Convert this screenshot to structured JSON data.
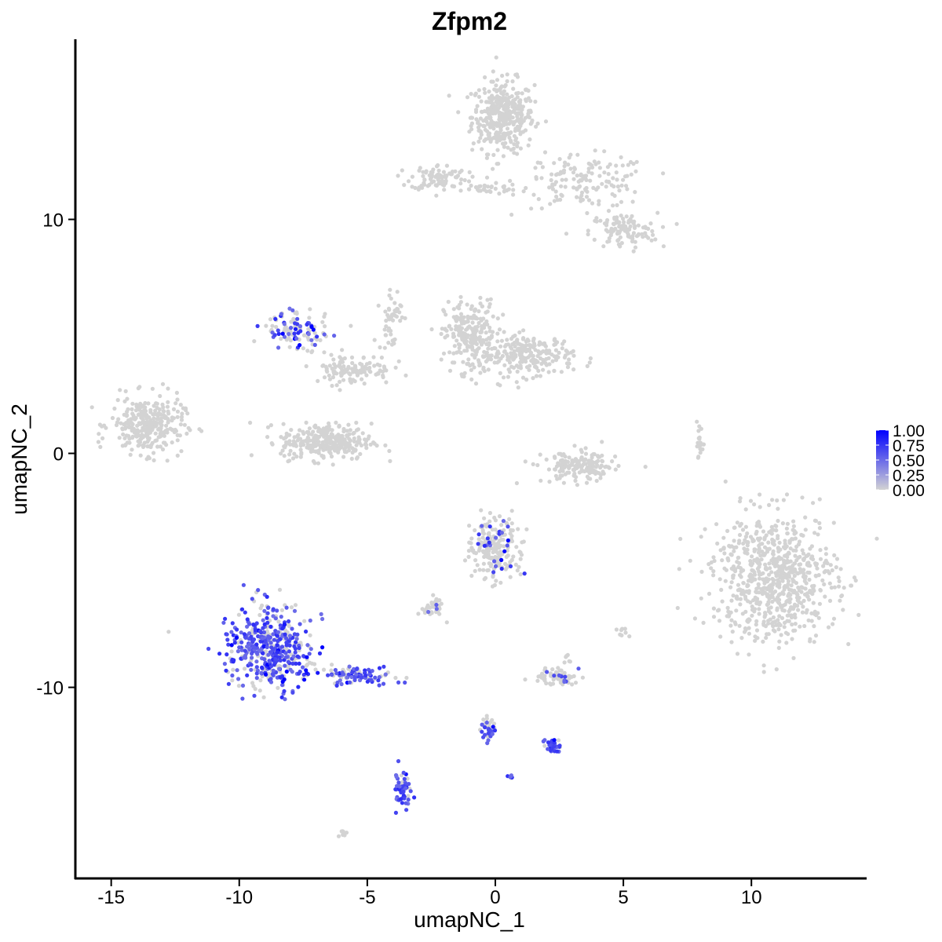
{
  "chart_data": {
    "type": "scatter",
    "title": "Zfpm2",
    "xlabel": "umapNC_1",
    "ylabel": "umapNC_2",
    "xlim": [
      -16.4,
      14.5
    ],
    "ylim": [
      -18.2,
      17.7
    ],
    "xticks": [
      -15,
      -10,
      -5,
      0,
      5,
      10
    ],
    "yticks": [
      -10,
      0,
      10
    ],
    "xtick_labels": [
      "-15",
      "-10",
      "-5",
      "0",
      "5",
      "10"
    ],
    "ytick_labels": [
      "-10",
      "0",
      "10"
    ],
    "grid": false,
    "color_scale": {
      "low": "#d3d3d3",
      "high": "#0000ff",
      "min": 0,
      "max": 1,
      "ticks": [
        1.0,
        0.75,
        0.5,
        0.25,
        0.0
      ],
      "tick_labels": [
        "1.00",
        "0.75",
        "0.50",
        "0.25",
        "0.00"
      ],
      "legend_position": "right"
    },
    "clusters": [
      {
        "cx": 0.3,
        "cy": 14.4,
        "rx": 1.1,
        "ry": 1.4,
        "n": 380,
        "expr": 0
      },
      {
        "cx": 3.5,
        "cy": 11.6,
        "rx": 2.3,
        "ry": 1.0,
        "n": 150,
        "expr": 0
      },
      {
        "cx": 5.0,
        "cy": 9.5,
        "rx": 1.2,
        "ry": 0.7,
        "n": 110,
        "expr": 0
      },
      {
        "cx": -2.2,
        "cy": 11.8,
        "rx": 1.0,
        "ry": 0.5,
        "n": 90,
        "expr": 0
      },
      {
        "cx": -0.5,
        "cy": 11.3,
        "rx": 1.5,
        "ry": 0.2,
        "n": 30,
        "expr": 0
      },
      {
        "cx": -1.0,
        "cy": 5.0,
        "rx": 0.9,
        "ry": 1.4,
        "n": 230,
        "expr": 0
      },
      {
        "cx": 1.3,
        "cy": 4.2,
        "rx": 1.6,
        "ry": 0.8,
        "n": 230,
        "expr": 0
      },
      {
        "cx": -13.6,
        "cy": 1.2,
        "rx": 1.3,
        "ry": 1.1,
        "n": 300,
        "expr": 0
      },
      {
        "cx": -6.6,
        "cy": 0.5,
        "rx": 1.6,
        "ry": 0.7,
        "n": 300,
        "expr": 0
      },
      {
        "cx": -5.6,
        "cy": 3.6,
        "rx": 1.4,
        "ry": 0.6,
        "n": 110,
        "expr": 0
      },
      {
        "cx": -4.1,
        "cy": 5.8,
        "rx": 0.4,
        "ry": 1.3,
        "n": 50,
        "expr": 0
      },
      {
        "cx": -7.8,
        "cy": 5.3,
        "rx": 1.1,
        "ry": 0.8,
        "n": 110,
        "expr": 0.35
      },
      {
        "cx": 3.3,
        "cy": -0.6,
        "rx": 1.3,
        "ry": 0.6,
        "n": 170,
        "expr": 0
      },
      {
        "cx": 10.9,
        "cy": -5.3,
        "rx": 2.2,
        "ry": 2.5,
        "n": 720,
        "expr": 0
      },
      {
        "cx": 8.0,
        "cy": 0.3,
        "rx": 0.1,
        "ry": 0.6,
        "n": 20,
        "expr": 0
      },
      {
        "cx": 0.0,
        "cy": -4.1,
        "rx": 0.8,
        "ry": 1.2,
        "n": 210,
        "expr": 0.02
      },
      {
        "cx": -2.4,
        "cy": -6.6,
        "rx": 0.4,
        "ry": 0.5,
        "n": 40,
        "expr": 0.02
      },
      {
        "cx": 2.4,
        "cy": -9.6,
        "rx": 0.8,
        "ry": 0.3,
        "n": 70,
        "expr": 0.02
      },
      {
        "cx": -8.8,
        "cy": -8.3,
        "rx": 1.5,
        "ry": 1.6,
        "n": 480,
        "expr": 0.55
      },
      {
        "cx": -5.5,
        "cy": -9.5,
        "rx": 1.3,
        "ry": 0.4,
        "n": 90,
        "expr": 0.6
      },
      {
        "cx": -3.6,
        "cy": -14.4,
        "rx": 0.3,
        "ry": 0.8,
        "n": 60,
        "expr": 0.75
      },
      {
        "cx": 2.3,
        "cy": -12.5,
        "rx": 0.4,
        "ry": 0.3,
        "n": 35,
        "expr": 0.7
      },
      {
        "cx": -0.3,
        "cy": -11.8,
        "rx": 0.3,
        "ry": 0.4,
        "n": 35,
        "expr": 0.6
      },
      {
        "cx": 0.6,
        "cy": -13.8,
        "rx": 0.1,
        "ry": 0.1,
        "n": 6,
        "expr": 0.5
      },
      {
        "cx": -6.0,
        "cy": -16.2,
        "rx": 0.2,
        "ry": 0.1,
        "n": 8,
        "expr": 0
      },
      {
        "cx": 5.0,
        "cy": -7.7,
        "rx": 0.2,
        "ry": 0.2,
        "n": 8,
        "expr": 0
      },
      {
        "cx": 2.8,
        "cy": -8.8,
        "rx": 0.2,
        "ry": 0.2,
        "n": 6,
        "expr": 0
      }
    ]
  }
}
